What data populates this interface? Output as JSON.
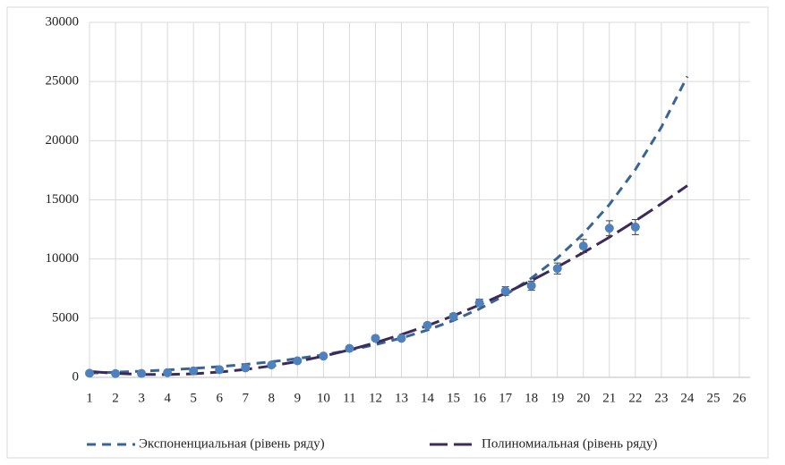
{
  "chart_data": {
    "type": "scatter",
    "xlim": [
      1,
      26
    ],
    "xticks": [
      1,
      2,
      3,
      4,
      5,
      6,
      7,
      8,
      9,
      10,
      11,
      12,
      13,
      14,
      15,
      16,
      17,
      18,
      19,
      20,
      21,
      22,
      23,
      24,
      25,
      26
    ],
    "ylim": [
      0,
      30000
    ],
    "yticks": [
      0,
      5000,
      10000,
      15000,
      20000,
      25000,
      30000
    ],
    "grid": true,
    "legend": "bottom",
    "series": [
      {
        "color": "#4f81bd",
        "x": [
          1,
          2,
          3,
          4,
          5,
          6,
          7,
          8,
          9,
          10,
          11,
          12,
          13,
          14,
          15,
          16,
          17,
          18,
          19,
          20,
          21,
          22
        ],
        "values": [
          350,
          320,
          330,
          400,
          550,
          650,
          800,
          1050,
          1400,
          1800,
          2450,
          3300,
          3300,
          4400,
          5150,
          6300,
          7300,
          7750,
          9200,
          11100,
          12600,
          12700
        ],
        "errors": [
          17.5,
          16,
          16.5,
          20,
          27.5,
          32.5,
          40,
          52.5,
          70,
          90,
          122.5,
          165,
          165,
          220,
          257.5,
          315,
          365,
          387.5,
          460,
          555,
          630,
          635
        ]
      },
      {
        "name": "Экспоненциальная (рівень ряду)",
        "color": "#3a6496",
        "style": "dash",
        "x": [
          1,
          2,
          3,
          4,
          5,
          6,
          7,
          8,
          9,
          10,
          11,
          12,
          13,
          14,
          15,
          16,
          17,
          18,
          19,
          20,
          21,
          22,
          23,
          24
        ],
        "values": [
          361,
          434,
          523,
          629,
          757,
          910,
          1095,
          1318,
          1586,
          1908,
          2296,
          2762,
          3324,
          3999,
          4812,
          5790,
          6966,
          8382,
          10086,
          12136,
          14602,
          17569,
          21140,
          25436
        ]
      },
      {
        "name": "Полиномиальная (рівень ряду)",
        "color": "#3b2a5a",
        "style": "longdash",
        "x": [
          1,
          2,
          3,
          4,
          5,
          6,
          7,
          8,
          9,
          10,
          11,
          12,
          13,
          14,
          15,
          16,
          17,
          18,
          19,
          20,
          21,
          22,
          23,
          24
        ],
        "values": [
          500,
          336,
          248,
          238,
          305,
          449,
          670,
          967,
          1343,
          1794,
          2323,
          2929,
          3612,
          4371,
          5208,
          6122,
          7113,
          8180,
          9326,
          10547,
          11846,
          13222,
          14675,
          16204
        ]
      }
    ]
  }
}
